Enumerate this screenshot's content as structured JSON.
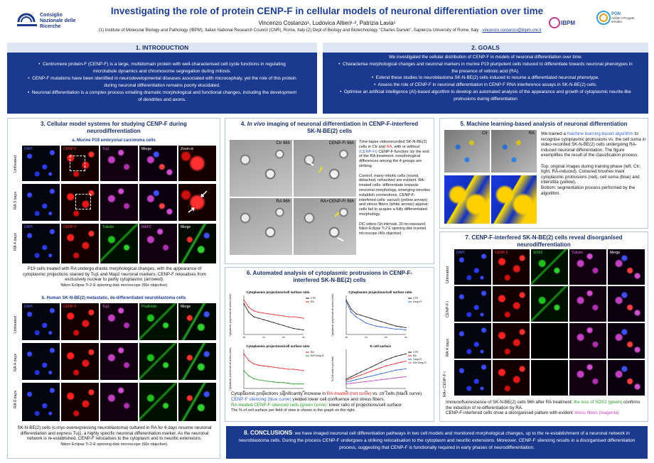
{
  "header": {
    "title": "Investigating the role of protein CENP-F in cellular models of neuronal differentiation over time",
    "authors": "Vincenzo Costanzo¹, Ludovica Altieri¹·², Patrizia Lavia¹",
    "affiliations": "(1) Institute of Molecular Biology and Pathology (IBPM), Italian National Research Council (CNR), Rome,  Italy   (2) Dept of Biology and Biotechnology \"Charles Darwin\", Sapienza University of Rome, Italy .",
    "email": "vincenzo.costanzo@ibpm.cnr.it",
    "cnr_logo_text": "Consiglio Nazionale delle Ricerche",
    "ibpm_logo_text": "IBPM",
    "pon_logo_text": "PON",
    "pon_sub": "ASSE II Progetti tematici"
  },
  "intro": {
    "heading": "1.  INTRODUCTION",
    "bullets": [
      "Centromere protein-F (CENP-F) is a large, multidomain protein with well-characterised cell cycle functions in regulating microtubule dynamics and chromosome segregation during mitosis.",
      "CENP-F mutations have been identified in neurodevelopmental diseases associated with microcephaly, yet the role of this protein during neuronal differentiation remains poorly elucidated.",
      "Neuronal differentiation is a complex process entailing dramatic morphological and functional changes, including the development of dendrites and axons."
    ]
  },
  "goals": {
    "heading": "2. GOALS",
    "lead": "We investigated the cellular distribution of CENP-F in models of neuronal differentiation over time:",
    "bullets": [
      "Characterise morphological changes and neuronal markers in murine P19 pluripotent cells induced to differentiate towards neuronal phenotypes in the presence of retinoic acid (RA).",
      "Extend these studies to neuroblastoma SK-N-BE(2) cells induced to resume a differentiated neuronal phenotype.",
      "Assess the role of CENP-F in neuronal differentiation in CENP-F RNA interference assays in SK-N-BE(2) cells.",
      "Optimise an artificial intelligence (AI)-based algorithm to develop an automated analysis of the appearance and growth of cytoplasmic neurite-like protrusions during differentiation"
    ]
  },
  "s3": {
    "heading": "3. Cellular model systems for studying CENP-F during neurodifferentiation",
    "sub_a": "a. Murine P19 embryonal carcinoma cells",
    "a_cols": [
      "DAPI",
      "CENP-F",
      "Tuj1",
      "Merge",
      "Zoom-in"
    ],
    "a_cols2": [
      "DAPI",
      "CENP-F",
      "Tubulin",
      "MAP2",
      "Merge"
    ],
    "a_rows": [
      "Untreated",
      "RA 3 days",
      "RA 4 days"
    ],
    "a_caption": "P19 cells treated with RA undergo drastic morphological changes, with the appearance of cytoplasmic projections stained by Tuj1 and Map2 neuronal markers. CENP-F relocalises from exclusively nuclear to partly cytoplasmic (arrowed).",
    "a_micro": "Nikon Eclipse Ti-2-E spinning disk microscope (60x objective).",
    "sub_b": "b. Human SK-N-BE(2) metastatic, de-differentiated neuroblastoma cells",
    "b_cols": [
      "DAPI",
      "CENP-F",
      "Tuj1",
      "Phalloidin",
      "Merge"
    ],
    "b_rows": [
      "Untreated",
      "RA 4 days",
      "RA 6 days"
    ],
    "b_caption": "SK-N-BE(2) cells (c-myc-overexpressing neuroblastoma) cultured in RA for 6 days resume neuronal differentiation and express Tuj1, a highly specific neuronal differentiation marker. As the neuronal network is re-established, CENP-F relocalises to the cytoplasm and to neuritic extensions.",
    "b_micro": "Nikon Eclipse Ti-2-E spinning disk microscope (60x objective)."
  },
  "s4": {
    "heading_pre": "4. ",
    "heading_em": "In vivo",
    "heading_post": " imaging of neuronal differentiation in CENP-F-interfered SK-N-BE(2) cells",
    "panels": [
      "Ctr 96h",
      "CENP-Fi 96h",
      "RA 96h",
      "RA+CENP-Fi 96h"
    ],
    "text1_a": "Time-lapse videorecorded SK-N-BE(2) cells in Ctr and ",
    "text1_ra": "RA",
    "text1_b": ", with or without ",
    "text1_cenp": "(CENP-Fi)",
    "text1_c": " CENP-F function: by the end of the RA treatment, morphological differences among the 4 groups are striking.",
    "text2": "Control: many mitotic cells (round, detached, refractive) are evident. RA-treated cells:  differentiate towards neuronal morphology, emerging neurites establish connections. CENP-F-interfered cells:  vacuoli (yellow arrows) and stress fibers (white arrows) appear;  cells fail to acquire a fully differentiated morphology.",
    "text3": "DIC videos (1h-intervals, 20 ms exposure). Nikon Eclipse Ti-2 E spinning disk inverted microscope (40x objective)."
  },
  "s5": {
    "heading": "5. Machine learning-based analysis of neuronal differentiation",
    "panels": [
      "Ctr",
      "RA"
    ],
    "text_a": "We trained a ",
    "text_hl": "machine learning-based algorithm",
    "text_b": " to recognise cytoplasmic protrusions vs. the cell soma in video-recorded SK-N-BE(2) cells undergoing RA-induced neuronal differentiation. The figure exemplifies the result of the classification process.",
    "text2": "Top: original images during training phase (left, Ctr; right, RA-induced). Coloured brushes mark cytoplasmic protrusions (red), cell soma (blue) and interstitia (yellow).",
    "text3": "Bottom: segmentation process performed by the algorithm."
  },
  "s6": {
    "heading": "6. Automated analysis of cytoplasmic protrusions in CENP-F-interfered SK-N-BE(2) cells",
    "cap_a": "Cytoplasmic projections significantly increase in ",
    "cap_red": "RA-treated (red curve)",
    "cap_b": " vs. ctr cells (black curve).",
    "cap_blue": "CENP-F silencing (blue curve)",
    "cap_c": " yielded lower cell confluence and stress fibers.",
    "cap_green": "RA-treated CENP-F-silenced cells (green curve)",
    "cap_d": ": lower ratio of projections/cell surface",
    "cap_e": "The % of cell surface per field of view is shown in the graph on the right."
  },
  "chart_data": [
    {
      "type": "line",
      "title": "Cytoplasmic projections/cell surface ratio",
      "ylabel": "Cytoplasmic projections/cell surface (ratio)",
      "x": [
        48,
        52,
        56,
        60,
        64,
        68,
        72,
        76,
        80,
        84,
        88,
        92,
        96
      ],
      "series": [
        {
          "name": "CTR",
          "color": "#111111",
          "values": [
            0.9,
            0.78,
            0.72,
            0.7,
            0.68,
            0.66,
            0.64,
            0.62,
            0.6,
            0.58,
            0.56,
            0.55,
            0.54
          ]
        },
        {
          "name": "RA",
          "color": "#e02020",
          "values": [
            0.95,
            0.85,
            0.8,
            0.78,
            0.77,
            0.76,
            0.75,
            0.74,
            0.73,
            0.72,
            0.72,
            0.71,
            0.7
          ]
        }
      ]
    },
    {
      "type": "line",
      "title": "Cytoplasmic projections/cell surface ratio",
      "ylabel": "Cytoplasmic projections/cell surface (ratio)",
      "x": [
        48,
        52,
        56,
        60,
        64,
        68,
        72,
        76,
        80,
        84,
        88,
        92,
        96
      ],
      "series": [
        {
          "name": "CTR",
          "color": "#111111",
          "values": [
            0.9,
            0.78,
            0.72,
            0.7,
            0.68,
            0.66,
            0.64,
            0.62,
            0.6,
            0.58,
            0.56,
            0.55,
            0.54
          ]
        },
        {
          "name": "Cenp-Fi",
          "color": "#2a5fd0",
          "values": [
            0.88,
            0.74,
            0.68,
            0.64,
            0.6,
            0.58,
            0.56,
            0.55,
            0.54,
            0.53,
            0.52,
            0.52,
            0.51
          ]
        }
      ]
    },
    {
      "type": "line",
      "title": "Cytoplasmic projections/cell surface ratio",
      "ylabel": "Cytoplasmic projections/cell surface (ratio)",
      "x": [
        48,
        52,
        56,
        60,
        64,
        68,
        72,
        76,
        80,
        84,
        88,
        92,
        96
      ],
      "series": [
        {
          "name": "RA",
          "color": "#e02020",
          "values": [
            0.95,
            0.85,
            0.8,
            0.78,
            0.77,
            0.76,
            0.75,
            0.74,
            0.73,
            0.72,
            0.72,
            0.71,
            0.7
          ]
        },
        {
          "name": "RA+Cenp-Fi",
          "color": "#2a9a2a",
          "values": [
            0.7,
            0.62,
            0.58,
            0.56,
            0.55,
            0.54,
            0.53,
            0.52,
            0.52,
            0.51,
            0.5,
            0.5,
            0.5
          ]
        }
      ]
    },
    {
      "type": "line",
      "title": "% cell surface",
      "ylabel": "% Cell surface (per field)",
      "x": [
        48,
        52,
        56,
        60,
        64,
        68,
        72,
        76,
        80,
        84,
        88,
        92,
        96
      ],
      "series": [
        {
          "name": "CTR",
          "color": "#111111",
          "values": [
            20,
            24,
            28,
            32,
            36,
            40,
            44,
            48,
            52,
            55,
            58,
            60,
            62
          ]
        },
        {
          "name": "RA",
          "color": "#e02020",
          "values": [
            18,
            21,
            24,
            27,
            30,
            33,
            36,
            39,
            42,
            44,
            46,
            48,
            50
          ]
        },
        {
          "name": "Cenp-Fi",
          "color": "#2a5fd0",
          "values": [
            15,
            17,
            19,
            21,
            23,
            25,
            27,
            29,
            31,
            33,
            35,
            36,
            37
          ]
        },
        {
          "name": "RA+Cenp-Fi",
          "color": "#c040c0",
          "values": [
            12,
            13,
            14,
            15,
            16,
            17,
            18,
            19,
            20,
            21,
            22,
            23,
            24
          ]
        }
      ]
    }
  ],
  "s7": {
    "heading": "7. CENP-F-interfered SK-N-BE(2) cells reveal disorganised neurodifferentiation",
    "cols": [
      "DAPI",
      "CENP-F",
      "SOX2",
      "Tubulin",
      "Merge"
    ],
    "rows": [
      "Untreated",
      "CENP-F i",
      "RA 4 days",
      "RA+ CENP-F i"
    ],
    "cap_a": "Immunofluorescence of SK-N-BE(2) cells 96h after RA treatment: ",
    "cap_blue": "the loss of SOX2 (green)",
    "cap_b": " confirms the induction of  re-differentiation by RA.",
    "cap_c": "CENP-F-interfered cells show a disorganised pattern with evident ",
    "cap_mag": "stress fibers (magenta)"
  },
  "conclusions": {
    "heading": "8. CONCLUSIONS",
    "text": ": we have imaged neuronal cell differentiation pathways in two cell models and monitored morphological changes, up to the re-establishment of a neuronal network in neuroblastoma cells. During the process CENP-F undergoes a striking relocalisation to the cytoplasm and neuritic extensions. Moreover, CENP-F silencing results in a disorganised differentiation process, suggesting that CENP-F is functionally required in early phases of neurodifferentiation."
  }
}
